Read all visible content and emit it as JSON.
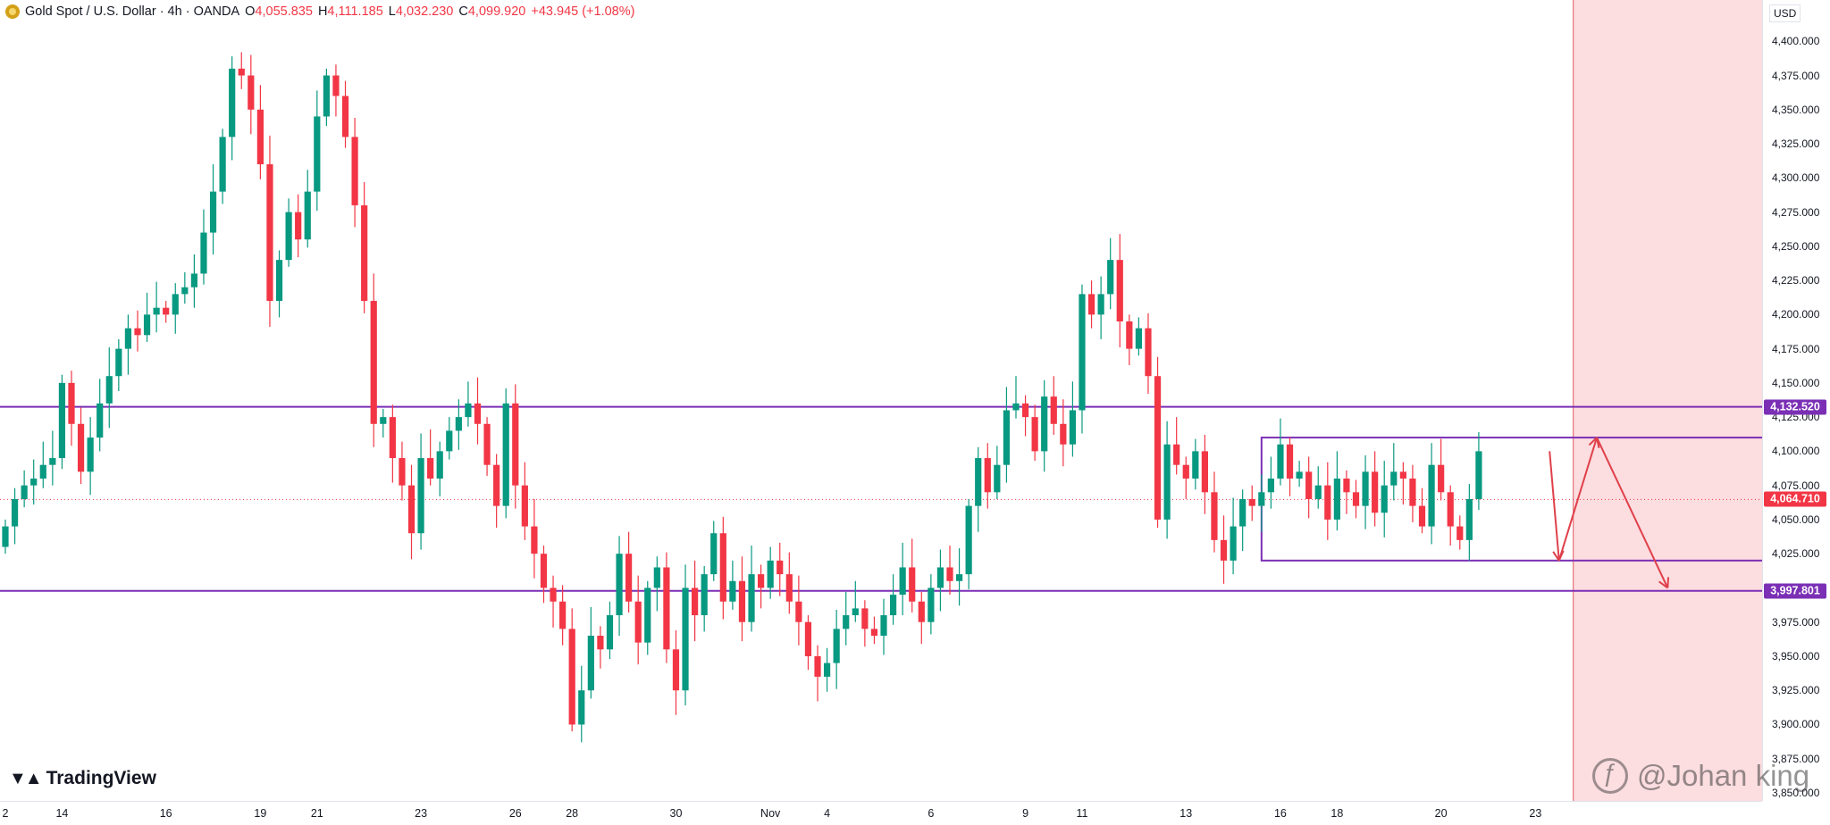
{
  "header": {
    "symbol": "Gold Spot / U.S. Dollar · 4h · OANDA",
    "o_label": "O",
    "o_value": "4,055.835",
    "h_label": "H",
    "h_value": "4,111.185",
    "l_label": "L",
    "l_value": "4,032.230",
    "c_label": "C",
    "c_value": "4,099.920",
    "change": "+43.945 (+1.08%)"
  },
  "currency": "USD",
  "brand": "TradingView",
  "watermark": "@Johan king",
  "colors": {
    "up": "#089981",
    "down": "#f23645",
    "level": "#7b2fb5",
    "arrow": "#e0404a",
    "shade": "#fcdde0",
    "current": "#f23645"
  },
  "price_labels": {
    "resistance": "4,132.520",
    "current": "4,064.710",
    "support": "3,997.801"
  },
  "chart_data": {
    "type": "candlestick",
    "title": "Gold Spot / U.S. Dollar · 4h · OANDA",
    "ylim": [
      3850,
      4425
    ],
    "yticks": [
      {
        "v": 4400,
        "label": "4,400.000"
      },
      {
        "v": 4375,
        "label": "4,375.000"
      },
      {
        "v": 4350,
        "label": "4,350.000"
      },
      {
        "v": 4325,
        "label": "4,325.000"
      },
      {
        "v": 4300,
        "label": "4,300.000"
      },
      {
        "v": 4275,
        "label": "4,275.000"
      },
      {
        "v": 4250,
        "label": "4,250.000"
      },
      {
        "v": 4225,
        "label": "4,225.000"
      },
      {
        "v": 4200,
        "label": "4,200.000"
      },
      {
        "v": 4175,
        "label": "4,175.000"
      },
      {
        "v": 4150,
        "label": "4,150.000"
      },
      {
        "v": 4125,
        "label": "4,125.000"
      },
      {
        "v": 4100,
        "label": "4,100.000"
      },
      {
        "v": 4075,
        "label": "4,075.000"
      },
      {
        "v": 4050,
        "label": "4,050.000"
      },
      {
        "v": 4025,
        "label": "4,025.000"
      },
      {
        "v": 3975,
        "label": "3,975.000"
      },
      {
        "v": 3950,
        "label": "3,950.000"
      },
      {
        "v": 3925,
        "label": "3,925.000"
      },
      {
        "v": 3900,
        "label": "3,900.000"
      },
      {
        "v": 3875,
        "label": "3,875.000"
      },
      {
        "v": 3850,
        "label": "3,850.000"
      }
    ],
    "xticks": [
      {
        "i": 0,
        "label": "2"
      },
      {
        "i": 6,
        "label": "14"
      },
      {
        "i": 17,
        "label": "16"
      },
      {
        "i": 27,
        "label": "19"
      },
      {
        "i": 33,
        "label": "21"
      },
      {
        "i": 44,
        "label": "23"
      },
      {
        "i": 54,
        "label": "26"
      },
      {
        "i": 60,
        "label": "28"
      },
      {
        "i": 71,
        "label": "30"
      },
      {
        "i": 81,
        "label": "Nov"
      },
      {
        "i": 87,
        "label": "4"
      },
      {
        "i": 98,
        "label": "6"
      },
      {
        "i": 108,
        "label": "9"
      },
      {
        "i": 114,
        "label": "11"
      },
      {
        "i": 125,
        "label": "13"
      },
      {
        "i": 135,
        "label": "16"
      },
      {
        "i": 141,
        "label": "18"
      },
      {
        "i": 152,
        "label": "20"
      },
      {
        "i": 162,
        "label": "23"
      }
    ],
    "levels": {
      "resistance": 4132.52,
      "support": 3997.801,
      "current": 4064.71
    },
    "range_box": {
      "i_start": 133,
      "i_end": 192,
      "top": 4110,
      "bottom": 4020
    },
    "future_zone_start": 166,
    "projection": [
      [
        163.5,
        4100
      ],
      [
        164.5,
        4020
      ],
      [
        168.5,
        4110
      ],
      [
        176,
        4000
      ]
    ],
    "closes": [
      4045,
      4065,
      4075,
      4080,
      4090,
      4095,
      4150,
      4120,
      4085,
      4110,
      4135,
      4155,
      4175,
      4190,
      4185,
      4200,
      4205,
      4200,
      4215,
      4220,
      4230,
      4260,
      4290,
      4330,
      4380,
      4375,
      4350,
      4310,
      4210,
      4240,
      4275,
      4255,
      4290,
      4345,
      4375,
      4360,
      4330,
      4280,
      4210,
      4120,
      4125,
      4095,
      4075,
      4040,
      4095,
      4080,
      4100,
      4115,
      4125,
      4135,
      4120,
      4090,
      4060,
      4135,
      4075,
      4045,
      4025,
      4000,
      3990,
      3970,
      3900,
      3925,
      3965,
      3955,
      3980,
      4025,
      3990,
      3960,
      4000,
      4015,
      3955,
      3925,
      4000,
      3980,
      4010,
      4040,
      3990,
      4005,
      3975,
      4010,
      4000,
      4020,
      4010,
      3990,
      3975,
      3950,
      3935,
      3945,
      3970,
      3980,
      3985,
      3970,
      3965,
      3980,
      3995,
      4015,
      3990,
      3975,
      4000,
      4015,
      4005,
      4010,
      4060,
      4095,
      4070,
      4090,
      4130,
      4135,
      4125,
      4100,
      4140,
      4120,
      4105,
      4130,
      4215,
      4200,
      4215,
      4240,
      4195,
      4175,
      4190,
      4155,
      4050,
      4105,
      4090,
      4080,
      4100,
      4070,
      4035,
      4020,
      4045,
      4065,
      4060,
      4070,
      4080,
      4105,
      4080,
      4085,
      4065,
      4075,
      4050,
      4080,
      4070,
      4060,
      4085,
      4055,
      4075,
      4085,
      4080,
      4060,
      4045,
      4090,
      4070,
      4045,
      4035,
      4065,
      4100
    ]
  }
}
